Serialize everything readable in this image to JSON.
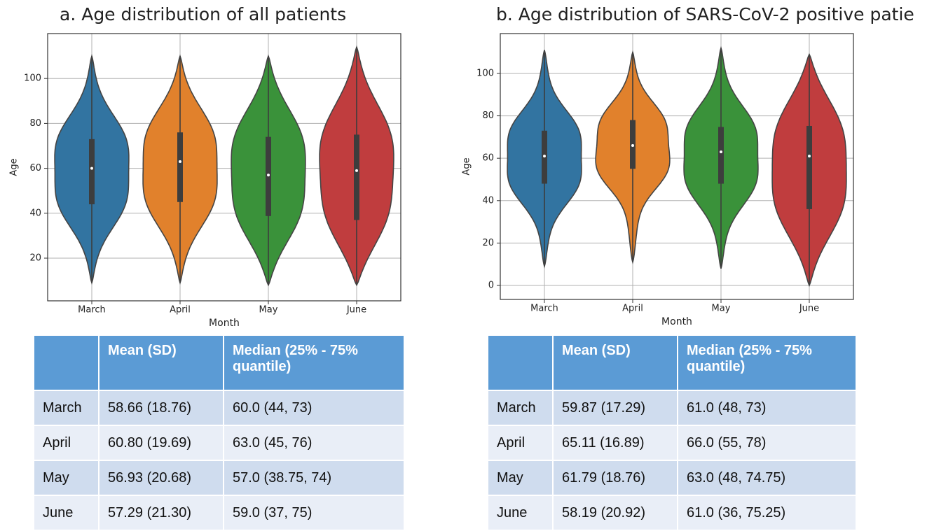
{
  "chart_data": [
    {
      "type": "violin",
      "title": "a. Age distribution of all patients",
      "x_label": "Month",
      "y_label": "Age",
      "categories": [
        "March",
        "April",
        "May",
        "June"
      ],
      "colors": [
        "#3274a1",
        "#e1812c",
        "#3a923a",
        "#c03d3e"
      ],
      "stats": {
        "low": [
          9,
          9,
          8,
          8
        ],
        "q1": [
          44,
          45,
          38.75,
          37
        ],
        "median": [
          60,
          63,
          57,
          59
        ],
        "q3": [
          73,
          76,
          74,
          75
        ],
        "high": [
          110,
          110,
          110,
          114
        ]
      },
      "ylim": [
        1,
        120
      ],
      "yticks": [
        20,
        40,
        60,
        80,
        100
      ],
      "grid": true
    },
    {
      "type": "violin",
      "title": "b. Age distribution of SARS-CoV-2 positive patie",
      "x_label": "Month",
      "y_label": "Age",
      "categories": [
        "March",
        "April",
        "May",
        "June"
      ],
      "colors": [
        "#3274a1",
        "#e1812c",
        "#3a923a",
        "#c03d3e"
      ],
      "stats": {
        "low": [
          9,
          11,
          8,
          0
        ],
        "q1": [
          48,
          55,
          48,
          36
        ],
        "median": [
          61,
          66,
          63,
          61
        ],
        "q3": [
          73,
          78,
          74.75,
          75.25
        ],
        "high": [
          111,
          110,
          112,
          109
        ]
      },
      "ylim": [
        -6.6,
        118.8
      ],
      "yticks": [
        0,
        20,
        40,
        60,
        80,
        100
      ],
      "grid": true
    }
  ],
  "tables": [
    {
      "header": [
        "Mean (SD)",
        "Median (25% - 75% quantile)"
      ],
      "rows": [
        [
          "March",
          "58.66 (18.76)",
          "60.0 (44, 73)"
        ],
        [
          "April",
          "60.80 (19.69)",
          "63.0 (45, 76)"
        ],
        [
          "May",
          "56.93 (20.68)",
          "57.0 (38.75, 74)"
        ],
        [
          "June",
          "57.29 (21.30)",
          "59.0 (37, 75)"
        ]
      ]
    },
    {
      "header": [
        "Mean (SD)",
        "Median (25% - 75% quantile)"
      ],
      "rows": [
        [
          "March",
          "59.87 (17.29)",
          "61.0 (48, 73)"
        ],
        [
          "April",
          "65.11 (16.89)",
          "66.0 (55, 78)"
        ],
        [
          "May",
          "61.79 (18.76)",
          "63.0 (48, 74.75)"
        ],
        [
          "June",
          "58.19 (20.92)",
          "61.0 (36, 75.25)"
        ]
      ]
    }
  ]
}
